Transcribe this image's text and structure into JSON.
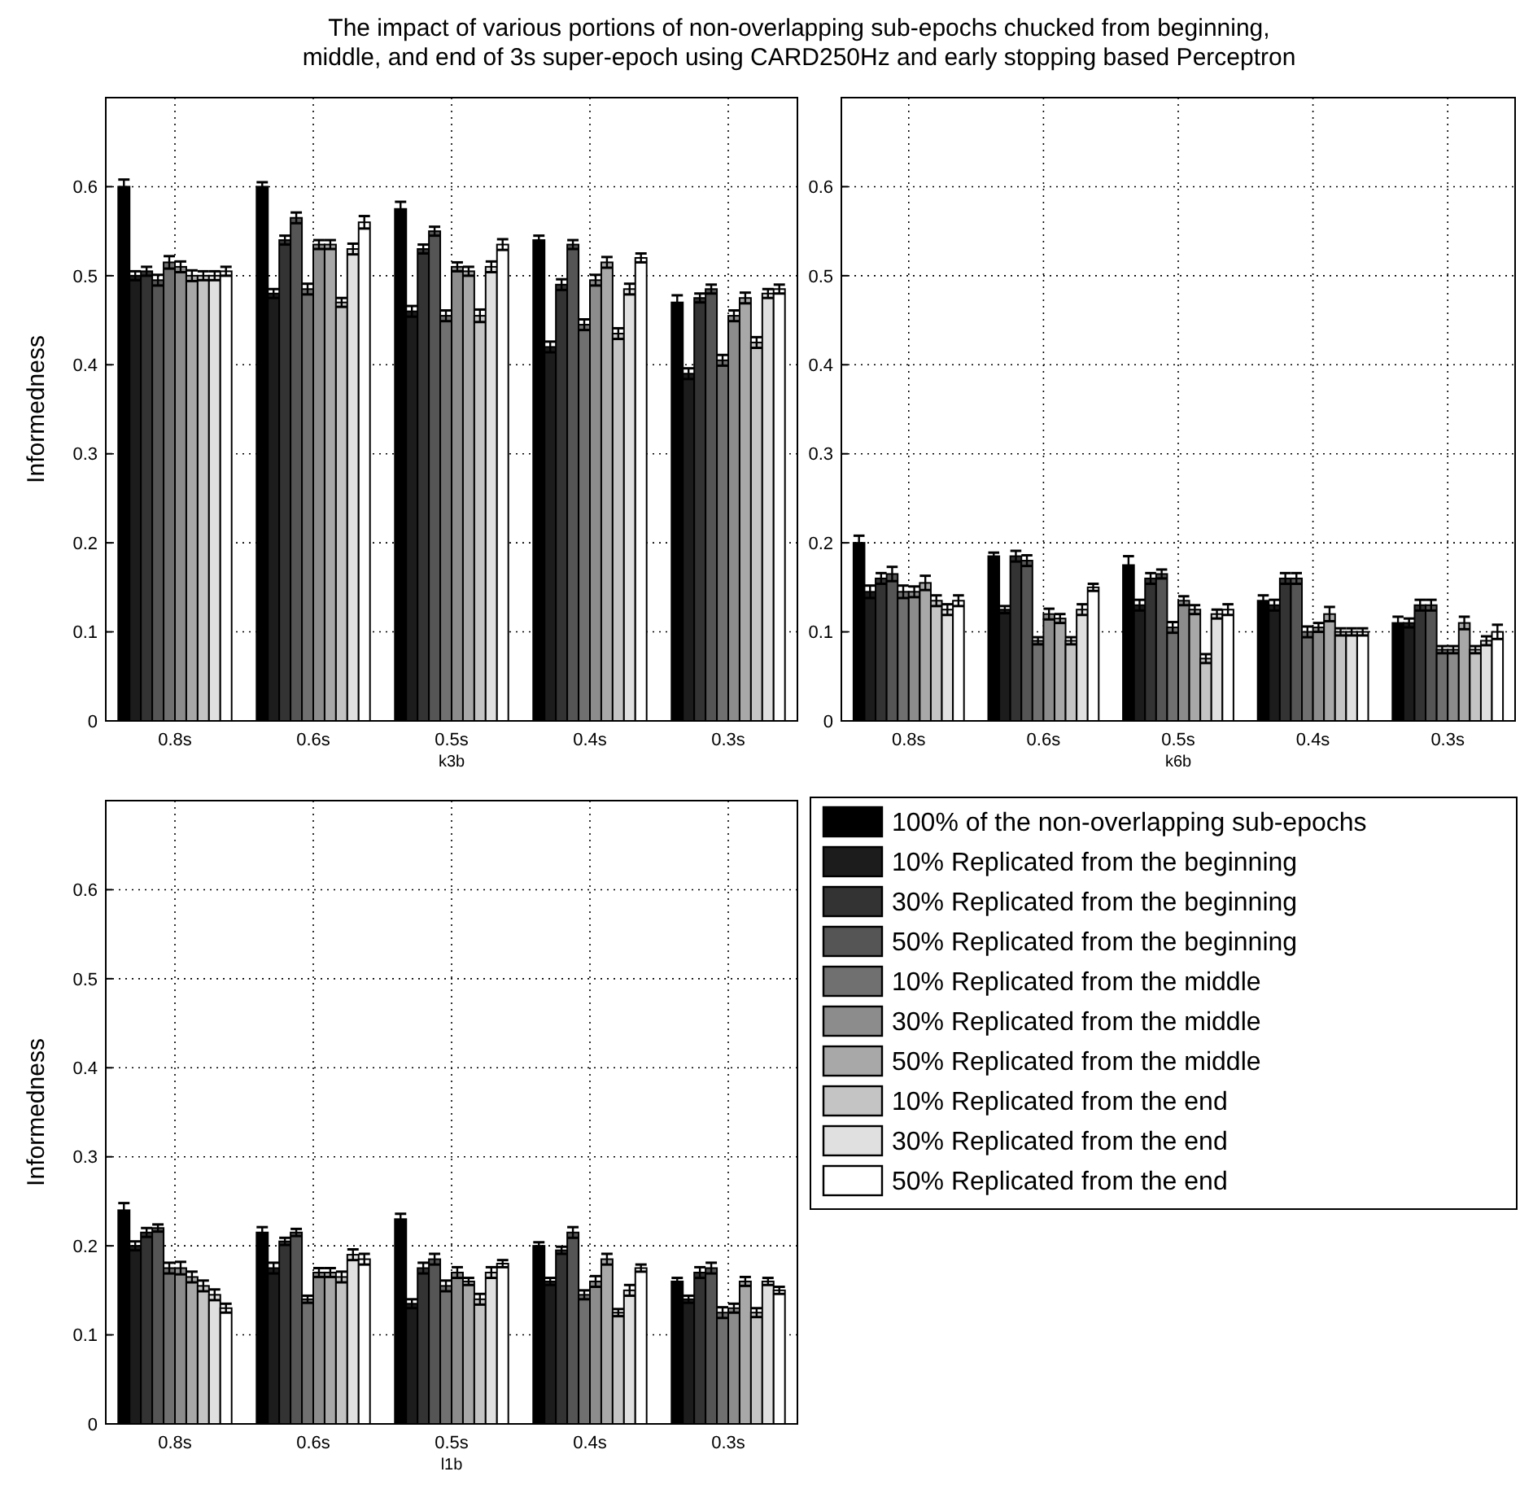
{
  "chart_data": [
    {
      "type": "bar",
      "title": "The impact of various portions of non-overlapping sub-epochs chucked from beginning,\nmiddle, and end of 3s super-epoch using CARD250Hz and early stopping based Perceptron",
      "xlabel": "k3b",
      "ylabel": "Informedness",
      "categories": [
        "0.8s",
        "0.6s",
        "0.5s",
        "0.4s",
        "0.3s"
      ],
      "ylim": [
        0,
        0.7
      ],
      "yticks": [
        0,
        0.1,
        0.2,
        0.3,
        0.4,
        0.5,
        0.6
      ],
      "grid": true,
      "series": [
        {
          "color": "#000000",
          "values": [
            0.6,
            0.6,
            0.575,
            0.54,
            0.47
          ],
          "errors": [
            0.008,
            0.005,
            0.008,
            0.005,
            0.008
          ]
        },
        {
          "color": "#1c1c1c",
          "values": [
            0.5,
            0.48,
            0.46,
            0.42,
            0.39
          ],
          "errors": [
            0.005,
            0.005,
            0.006,
            0.006,
            0.006
          ]
        },
        {
          "color": "#333333",
          "values": [
            0.505,
            0.54,
            0.53,
            0.49,
            0.475
          ],
          "errors": [
            0.005,
            0.005,
            0.005,
            0.006,
            0.005
          ]
        },
        {
          "color": "#555555",
          "values": [
            0.495,
            0.565,
            0.55,
            0.535,
            0.485
          ],
          "errors": [
            0.006,
            0.006,
            0.005,
            0.005,
            0.005
          ]
        },
        {
          "color": "#707070",
          "values": [
            0.515,
            0.485,
            0.455,
            0.445,
            0.405
          ],
          "errors": [
            0.007,
            0.006,
            0.006,
            0.006,
            0.006
          ]
        },
        {
          "color": "#8c8c8c",
          "values": [
            0.51,
            0.535,
            0.51,
            0.495,
            0.455
          ],
          "errors": [
            0.006,
            0.005,
            0.005,
            0.006,
            0.006
          ]
        },
        {
          "color": "#a8a8a8",
          "values": [
            0.5,
            0.535,
            0.505,
            0.515,
            0.475
          ],
          "errors": [
            0.006,
            0.005,
            0.005,
            0.006,
            0.006
          ]
        },
        {
          "color": "#c4c4c4",
          "values": [
            0.5,
            0.47,
            0.455,
            0.435,
            0.425
          ],
          "errors": [
            0.005,
            0.005,
            0.007,
            0.006,
            0.006
          ]
        },
        {
          "color": "#e0e0e0",
          "values": [
            0.5,
            0.53,
            0.51,
            0.485,
            0.48
          ],
          "errors": [
            0.005,
            0.006,
            0.006,
            0.006,
            0.005
          ]
        },
        {
          "color": "#ffffff",
          "values": [
            0.505,
            0.56,
            0.535,
            0.52,
            0.485
          ],
          "errors": [
            0.005,
            0.007,
            0.006,
            0.005,
            0.005
          ]
        }
      ]
    },
    {
      "type": "bar",
      "xlabel": "k6b",
      "categories": [
        "0.8s",
        "0.6s",
        "0.5s",
        "0.4s",
        "0.3s"
      ],
      "ylim": [
        0,
        0.7
      ],
      "yticks": [
        0,
        0.1,
        0.2,
        0.3,
        0.4,
        0.5,
        0.6
      ],
      "grid": true,
      "series": [
        {
          "color": "#000000",
          "values": [
            0.2,
            0.185,
            0.175,
            0.135,
            0.11
          ],
          "errors": [
            0.008,
            0.004,
            0.01,
            0.006,
            0.007
          ]
        },
        {
          "color": "#1c1c1c",
          "values": [
            0.145,
            0.125,
            0.13,
            0.13,
            0.11
          ],
          "errors": [
            0.007,
            0.004,
            0.006,
            0.006,
            0.005
          ]
        },
        {
          "color": "#333333",
          "values": [
            0.16,
            0.185,
            0.16,
            0.16,
            0.13
          ],
          "errors": [
            0.006,
            0.006,
            0.006,
            0.006,
            0.006
          ]
        },
        {
          "color": "#555555",
          "values": [
            0.165,
            0.18,
            0.165,
            0.16,
            0.13
          ],
          "errors": [
            0.008,
            0.006,
            0.005,
            0.006,
            0.006
          ]
        },
        {
          "color": "#707070",
          "values": [
            0.145,
            0.09,
            0.105,
            0.1,
            0.08
          ],
          "errors": [
            0.007,
            0.004,
            0.006,
            0.006,
            0.004
          ]
        },
        {
          "color": "#8c8c8c",
          "values": [
            0.145,
            0.12,
            0.135,
            0.105,
            0.08
          ],
          "errors": [
            0.006,
            0.006,
            0.005,
            0.005,
            0.004
          ]
        },
        {
          "color": "#a8a8a8",
          "values": [
            0.155,
            0.115,
            0.125,
            0.12,
            0.11
          ],
          "errors": [
            0.008,
            0.005,
            0.005,
            0.008,
            0.007
          ]
        },
        {
          "color": "#c4c4c4",
          "values": [
            0.135,
            0.09,
            0.07,
            0.1,
            0.08
          ],
          "errors": [
            0.006,
            0.004,
            0.005,
            0.004,
            0.004
          ]
        },
        {
          "color": "#e0e0e0",
          "values": [
            0.125,
            0.125,
            0.12,
            0.1,
            0.09
          ],
          "errors": [
            0.006,
            0.006,
            0.005,
            0.004,
            0.005
          ]
        },
        {
          "color": "#ffffff",
          "values": [
            0.135,
            0.15,
            0.125,
            0.1,
            0.1
          ],
          "errors": [
            0.006,
            0.004,
            0.006,
            0.004,
            0.008
          ]
        }
      ]
    },
    {
      "type": "bar",
      "xlabel": "l1b",
      "ylabel": "Informedness",
      "categories": [
        "0.8s",
        "0.6s",
        "0.5s",
        "0.4s",
        "0.3s"
      ],
      "ylim": [
        0,
        0.7
      ],
      "yticks": [
        0,
        0.1,
        0.2,
        0.3,
        0.4,
        0.5,
        0.6
      ],
      "grid": true,
      "legend": "right",
      "series": [
        {
          "name": "100% of the non-overlapping sub-epochs",
          "color": "#000000",
          "values": [
            0.24,
            0.215,
            0.23,
            0.2,
            0.16
          ],
          "errors": [
            0.008,
            0.006,
            0.006,
            0.004,
            0.004
          ]
        },
        {
          "name": "10% Replicated from the beginning",
          "color": "#1c1c1c",
          "values": [
            0.2,
            0.175,
            0.135,
            0.16,
            0.14
          ],
          "errors": [
            0.005,
            0.006,
            0.005,
            0.004,
            0.004
          ]
        },
        {
          "name": "30% Replicated from the beginning",
          "color": "#333333",
          "values": [
            0.215,
            0.205,
            0.175,
            0.195,
            0.17
          ],
          "errors": [
            0.005,
            0.004,
            0.006,
            0.004,
            0.006
          ]
        },
        {
          "name": "50% Replicated from the beginning",
          "color": "#555555",
          "values": [
            0.22,
            0.215,
            0.185,
            0.215,
            0.175
          ],
          "errors": [
            0.004,
            0.004,
            0.006,
            0.006,
            0.006
          ]
        },
        {
          "name": "10% Replicated from the middle",
          "color": "#707070",
          "values": [
            0.175,
            0.14,
            0.155,
            0.145,
            0.125
          ],
          "errors": [
            0.006,
            0.004,
            0.006,
            0.005,
            0.006
          ]
        },
        {
          "name": "30% Replicated from the middle",
          "color": "#8c8c8c",
          "values": [
            0.175,
            0.17,
            0.17,
            0.16,
            0.13
          ],
          "errors": [
            0.007,
            0.005,
            0.006,
            0.006,
            0.005
          ]
        },
        {
          "name": "50% Replicated from the middle",
          "color": "#a8a8a8",
          "values": [
            0.165,
            0.17,
            0.16,
            0.185,
            0.16
          ],
          "errors": [
            0.006,
            0.005,
            0.004,
            0.006,
            0.005
          ]
        },
        {
          "name": "10% Replicated from the end",
          "color": "#c4c4c4",
          "values": [
            0.155,
            0.165,
            0.14,
            0.125,
            0.125
          ],
          "errors": [
            0.006,
            0.006,
            0.006,
            0.004,
            0.005
          ]
        },
        {
          "name": "30% Replicated from the end",
          "color": "#e0e0e0",
          "values": [
            0.145,
            0.19,
            0.17,
            0.15,
            0.16
          ],
          "errors": [
            0.006,
            0.006,
            0.006,
            0.006,
            0.004
          ]
        },
        {
          "name": "50% Replicated from the end",
          "color": "#ffffff",
          "values": [
            0.13,
            0.185,
            0.18,
            0.175,
            0.15
          ],
          "errors": [
            0.005,
            0.006,
            0.004,
            0.004,
            0.004
          ]
        }
      ]
    }
  ]
}
